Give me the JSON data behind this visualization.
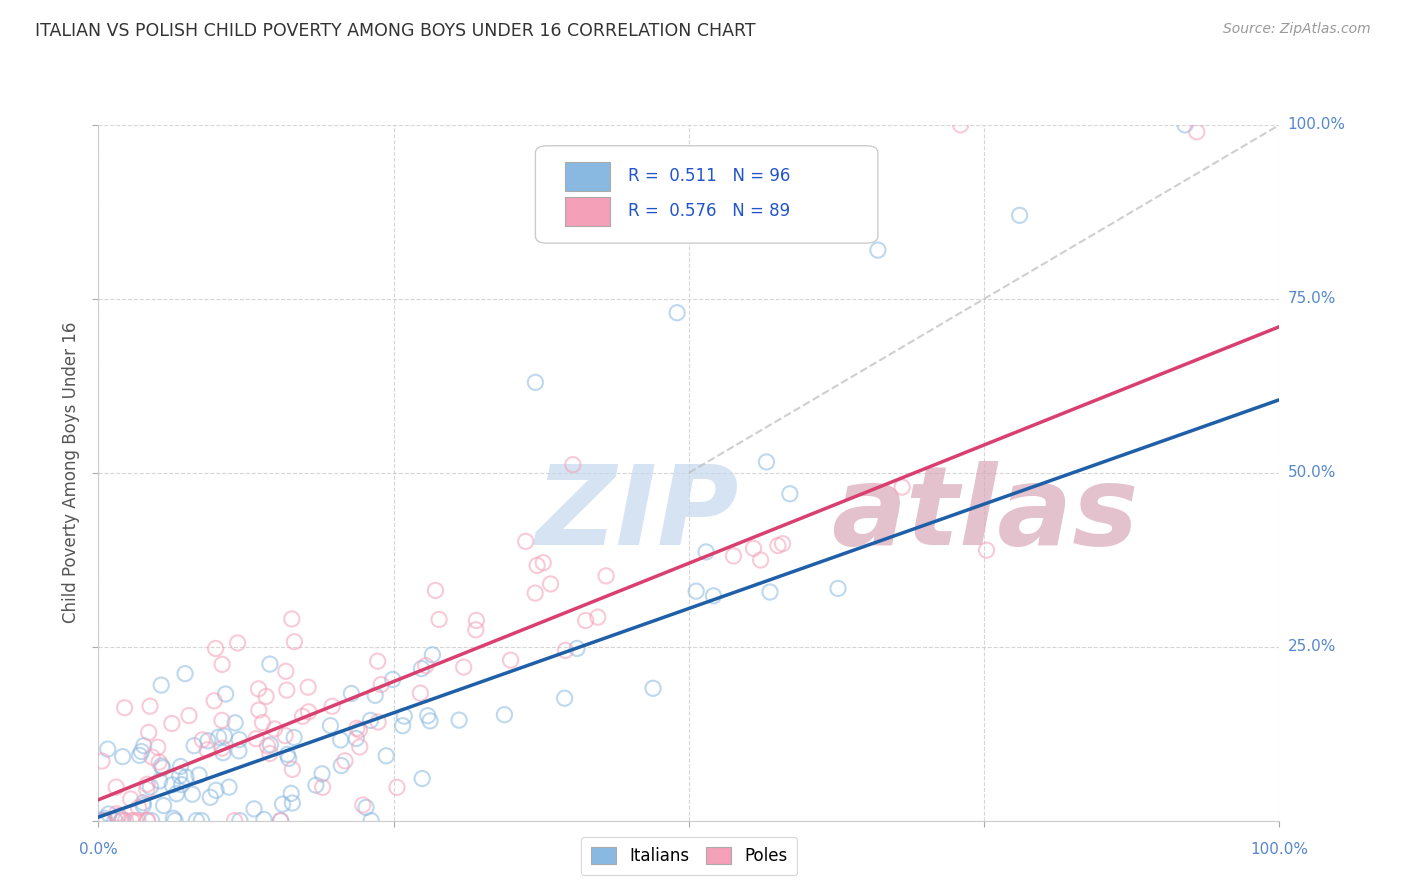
{
  "title": "ITALIAN VS POLISH CHILD POVERTY AMONG BOYS UNDER 16 CORRELATION CHART",
  "source": "Source: ZipAtlas.com",
  "ylabel": "Child Poverty Among Boys Under 16",
  "yaxis_ticks": [
    0.0,
    0.25,
    0.5,
    0.75,
    1.0
  ],
  "yaxis_labels": [
    "0.0%",
    "25.0%",
    "50.0%",
    "75.0%",
    "100.0%"
  ],
  "italian_color": "#89b8e0",
  "polish_color": "#f4a0b8",
  "italian_edge_color": "#6699cc",
  "polish_edge_color": "#e07090",
  "italian_line_color": "#1e5fa8",
  "polish_line_color": "#d94070",
  "ref_line_color": "#bbbbbb",
  "background_color": "#ffffff",
  "watermark": "ZIPAtlas",
  "watermark_color_zip": "#c5d8ee",
  "watermark_color_atlas": "#d8a8b8",
  "grid_color": "#cccccc",
  "title_color": "#333333",
  "axis_label_color": "#5588cc",
  "italian_R": 0.511,
  "italian_N": 96,
  "polish_R": 0.576,
  "polish_N": 89,
  "italian_intercept": 0.005,
  "italian_slope": 0.6,
  "polish_intercept": 0.03,
  "polish_slope": 0.68,
  "scatter_alpha": 0.55,
  "scatter_size": 120,
  "scatter_linewidth": 1.5,
  "legend_color": "#2255cc",
  "legend_fontsize": 13
}
